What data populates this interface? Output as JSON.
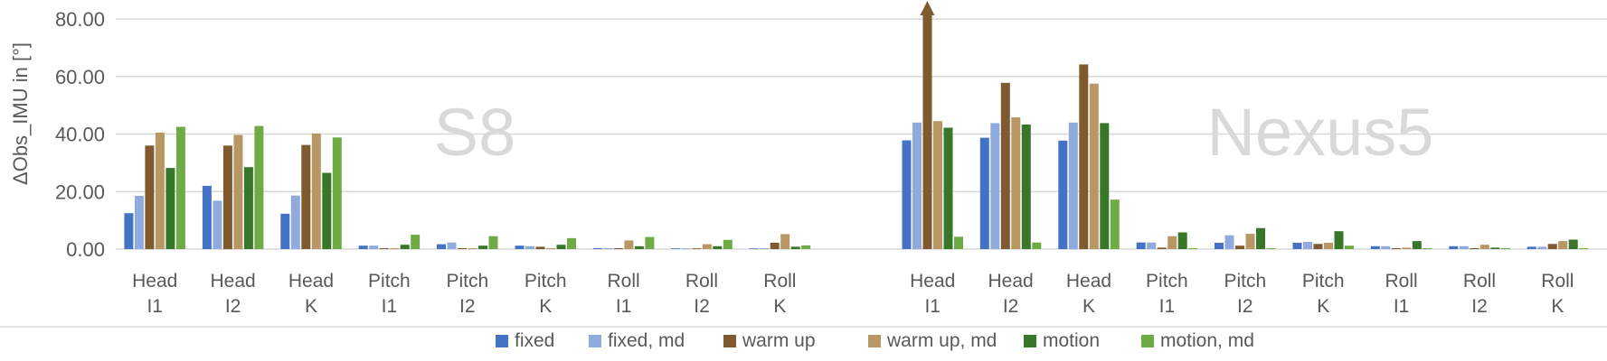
{
  "chart_data": {
    "type": "bar",
    "ylabel": "ΔObs_IMU in [°]",
    "ylim": [
      0,
      80
    ],
    "yticks": [
      "0.00",
      "20.00",
      "40.00",
      "60.00",
      "80.00"
    ],
    "ytick_values": [
      0,
      20,
      40,
      60,
      80
    ],
    "grid": true,
    "legend_position": "bottom",
    "groups": [
      {
        "label": "S8",
        "categories": [
          [
            "Head",
            "I1"
          ],
          [
            "Head",
            "I2"
          ],
          [
            "Head",
            "K"
          ],
          [
            "Pitch",
            "I1"
          ],
          [
            "Pitch",
            "I2"
          ],
          [
            "Pitch",
            "K"
          ],
          [
            "Roll",
            "I1"
          ],
          [
            "Roll",
            "I2"
          ],
          [
            "Roll",
            "K"
          ]
        ],
        "series": [
          {
            "name": "fixed",
            "values": [
              12.5,
              22.0,
              12.3,
              1.2,
              1.7,
              1.2,
              0.3,
              0.2,
              0.2
            ]
          },
          {
            "name": "fixed, md",
            "values": [
              18.5,
              16.8,
              18.6,
              1.2,
              2.3,
              1.0,
              0.3,
              0.2,
              0.3
            ]
          },
          {
            "name": "warm up",
            "values": [
              36.0,
              36.0,
              36.2,
              0.3,
              0.3,
              0.8,
              0.3,
              0.2,
              2.2
            ]
          },
          {
            "name": "warm up, md",
            "values": [
              40.5,
              39.7,
              40.2,
              0.3,
              0.3,
              0.3,
              3.0,
              1.7,
              5.2
            ]
          },
          {
            "name": "motion",
            "values": [
              28.2,
              28.5,
              26.5,
              1.5,
              1.2,
              1.5,
              1.0,
              1.0,
              0.8
            ]
          },
          {
            "name": "motion, md",
            "values": [
              42.5,
              42.8,
              38.8,
              5.0,
              4.5,
              3.8,
              4.2,
              3.2,
              1.3
            ]
          }
        ]
      },
      {
        "label": "Nexus5",
        "categories": [
          [
            "Head",
            "I1"
          ],
          [
            "Head",
            "I2"
          ],
          [
            "Head",
            "K"
          ],
          [
            "Pitch",
            "I1"
          ],
          [
            "Pitch",
            "I2"
          ],
          [
            "Pitch",
            "K"
          ],
          [
            "Roll",
            "I1"
          ],
          [
            "Roll",
            "I2"
          ],
          [
            "Roll",
            "K"
          ]
        ],
        "series": [
          {
            "name": "fixed",
            "values": [
              37.8,
              38.7,
              37.7,
              2.3,
              2.2,
              2.2,
              1.0,
              1.0,
              0.8
            ]
          },
          {
            "name": "fixed, md",
            "values": [
              44.0,
              43.8,
              44.0,
              2.3,
              4.8,
              2.5,
              1.0,
              1.0,
              0.8
            ]
          },
          {
            "name": "warm up",
            "values": [
              85.0,
              57.8,
              64.2,
              0.5,
              1.2,
              1.8,
              0.3,
              0.3,
              1.8
            ]
          },
          {
            "name": "warm up, md",
            "values": [
              44.5,
              45.8,
              57.5,
              4.5,
              5.3,
              2.2,
              0.5,
              1.5,
              2.8
            ]
          },
          {
            "name": "motion",
            "values": [
              42.2,
              43.3,
              43.8,
              5.8,
              7.3,
              6.2,
              2.8,
              0.5,
              3.3
            ]
          },
          {
            "name": "motion, md",
            "values": [
              4.3,
              2.3,
              17.2,
              0.3,
              0.3,
              1.2,
              0.3,
              0.3,
              0.3
            ]
          }
        ]
      }
    ],
    "series_colors": [
      "#4472c4",
      "#8faadc",
      "#7f5a2f",
      "#b99764",
      "#38762a",
      "#6fab45"
    ],
    "annotations": [
      {
        "note": "Nexus5 Head I1 warm up bar exceeds axis maximum (arrow)",
        "series": "warm up",
        "group": "Nexus5",
        "category_index": 0
      }
    ]
  }
}
